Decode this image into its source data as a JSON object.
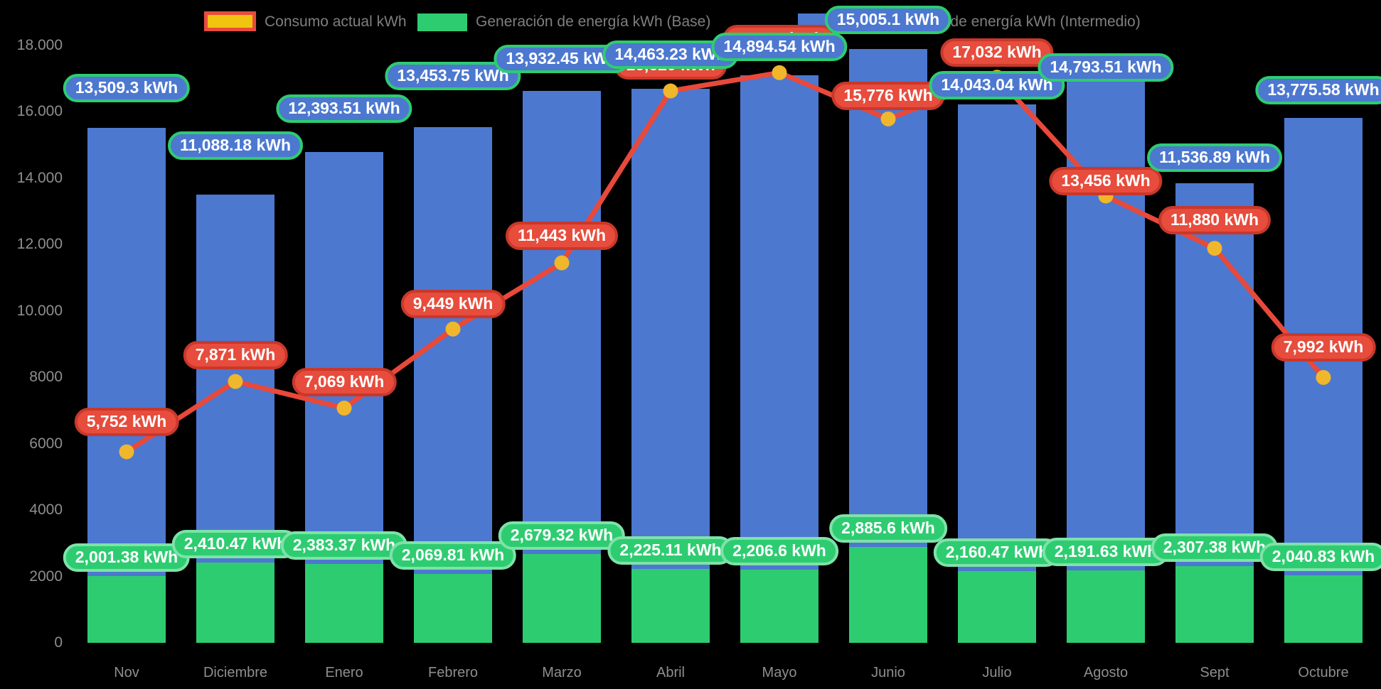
{
  "legend": {
    "items": [
      {
        "id": "consumo",
        "label": "Consumo actual kWh",
        "swatch_fill": "#f1c40f",
        "swatch_border": "#e74c3c"
      },
      {
        "id": "base",
        "label": "Generación de energía kWh (Base)",
        "swatch_fill": "#2ecc71",
        "swatch_border": null
      },
      {
        "id": "intermedio",
        "label": "Generación de energía kWh (Intermedio)",
        "swatch_fill": "#4c78d0",
        "swatch_border": null
      }
    ],
    "text_color": "#7f7f7f"
  },
  "chart_data": {
    "type": "bar",
    "subtype": "stacked-bars-with-line-overlay",
    "categories": [
      "Nov",
      "Diciembre",
      "Enero",
      "Febrero",
      "Marzo",
      "Abril",
      "Mayo",
      "Junio",
      "Julio",
      "Agosto",
      "Sept",
      "Octubre"
    ],
    "y_axis": {
      "range": [
        0,
        18000
      ],
      "tick_values": [
        0,
        2000,
        4000,
        6000,
        8000,
        10000,
        12000,
        14000,
        16000,
        18000
      ],
      "tick_labels": [
        "0",
        "2000",
        "4000",
        "6000",
        "8000",
        "10.000",
        "12.000",
        "14.000",
        "16.000",
        "18.000"
      ],
      "grid": false
    },
    "legend_position": "top",
    "series": [
      {
        "name": "Generación de energía kWh (Base)",
        "type": "bar",
        "stack": "generacion",
        "color": "#2ecc71",
        "values": [
          2001.38,
          2410.47,
          2383.37,
          2069.81,
          2679.32,
          2225.11,
          2206.6,
          2885.6,
          2160.47,
          2191.63,
          2307.38,
          2040.83
        ],
        "labels": [
          "2,001.38 kWh",
          "2,410.47 kWh",
          "2,383.37 kWh",
          "2,069.81 kWh",
          "2,679.32 kWh",
          "2,225.11 kWh",
          "2,206.6 kWh",
          "2,885.6 kWh",
          "2,160.47 kWh",
          "2,191.63 kWh",
          "2,307.38 kWh",
          "2,040.83 kWh"
        ]
      },
      {
        "name": "Generación de energía kWh (Intermedio)",
        "type": "bar",
        "stack": "generacion",
        "color": "#4c78d0",
        "values": [
          13509.3,
          11088.18,
          12393.51,
          13453.75,
          13932.45,
          14463.23,
          14894.54,
          15005.1,
          14043.04,
          14793.51,
          11536.89,
          13775.58
        ],
        "labels": [
          "13,509.3 kWh",
          "11,088.18 kWh",
          "12,393.51 kWh",
          "13,453.75 kWh",
          "13,932.45 kWh",
          "14,463.23 kWh",
          "14,894.54 kWh",
          "15,005.1 kWh",
          "14,043.04 kWh",
          "14,793.51 kWh",
          "11,536.89 kWh",
          "13,775.58 kWh"
        ]
      },
      {
        "name": "Consumo actual kWh",
        "type": "line",
        "color": "#e8493a",
        "point_color": "#f0b62c",
        "values": [
          5752,
          7871,
          7069,
          9449,
          11443,
          16620,
          17170,
          15776,
          17032,
          13456,
          11880,
          7992
        ],
        "labels": [
          "5,752 kWh",
          "7,871 kWh",
          "7,069 kWh",
          "9,449 kWh",
          "11,443 kWh",
          "16,620 kWh",
          "17,170 kWh",
          "15,776 kWh",
          "17,032 kWh",
          "13,456 kWh",
          "11,880 kWh",
          "7,992 kWh"
        ],
        "label_hidden": [
          false,
          false,
          false,
          false,
          false,
          true,
          true,
          false,
          false,
          false,
          false,
          false
        ],
        "values_estimated_from_plot_indices": [
          5,
          6
        ]
      }
    ]
  }
}
